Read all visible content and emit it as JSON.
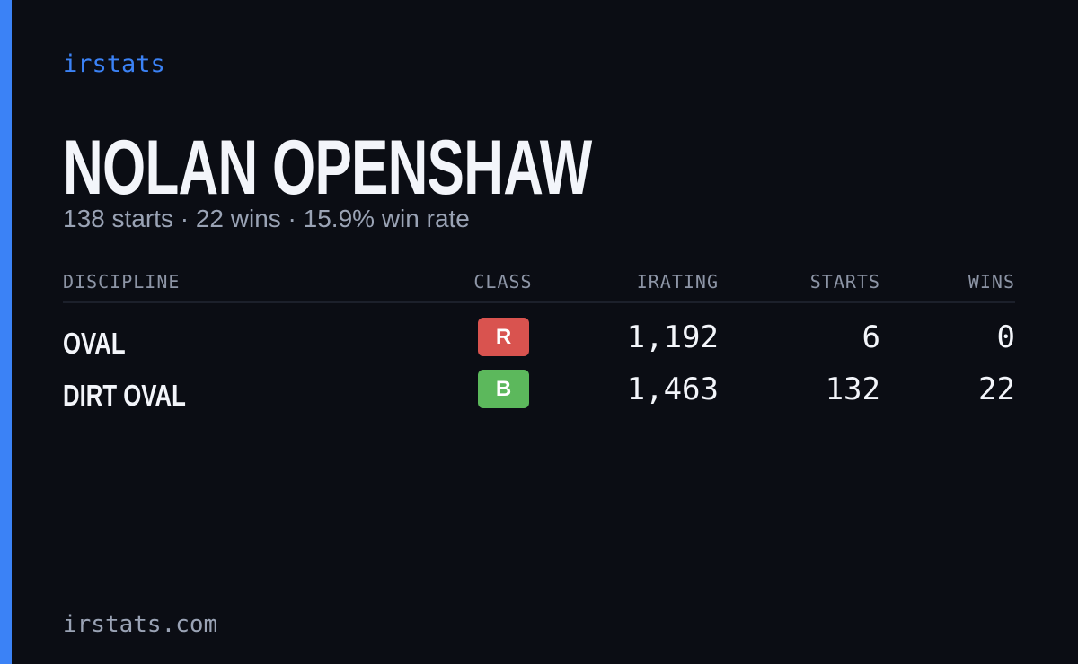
{
  "header": {
    "brand": "irstats"
  },
  "player": {
    "name": "NOLAN OPENSHAW",
    "summary": "138 starts · 22 wins · 15.9% win rate"
  },
  "table": {
    "columns": [
      "DISCIPLINE",
      "CLASS",
      "IRATING",
      "STARTS",
      "WINS"
    ],
    "rows": [
      {
        "discipline": "OVAL",
        "class": "R",
        "class_color": "#d9534f",
        "irating": "1,192",
        "starts": "6",
        "wins": "0"
      },
      {
        "discipline": "DIRT OVAL",
        "class": "B",
        "class_color": "#5cb85c",
        "irating": "1,463",
        "starts": "132",
        "wins": "22"
      }
    ]
  },
  "footer": {
    "site": "irstats.com"
  }
}
